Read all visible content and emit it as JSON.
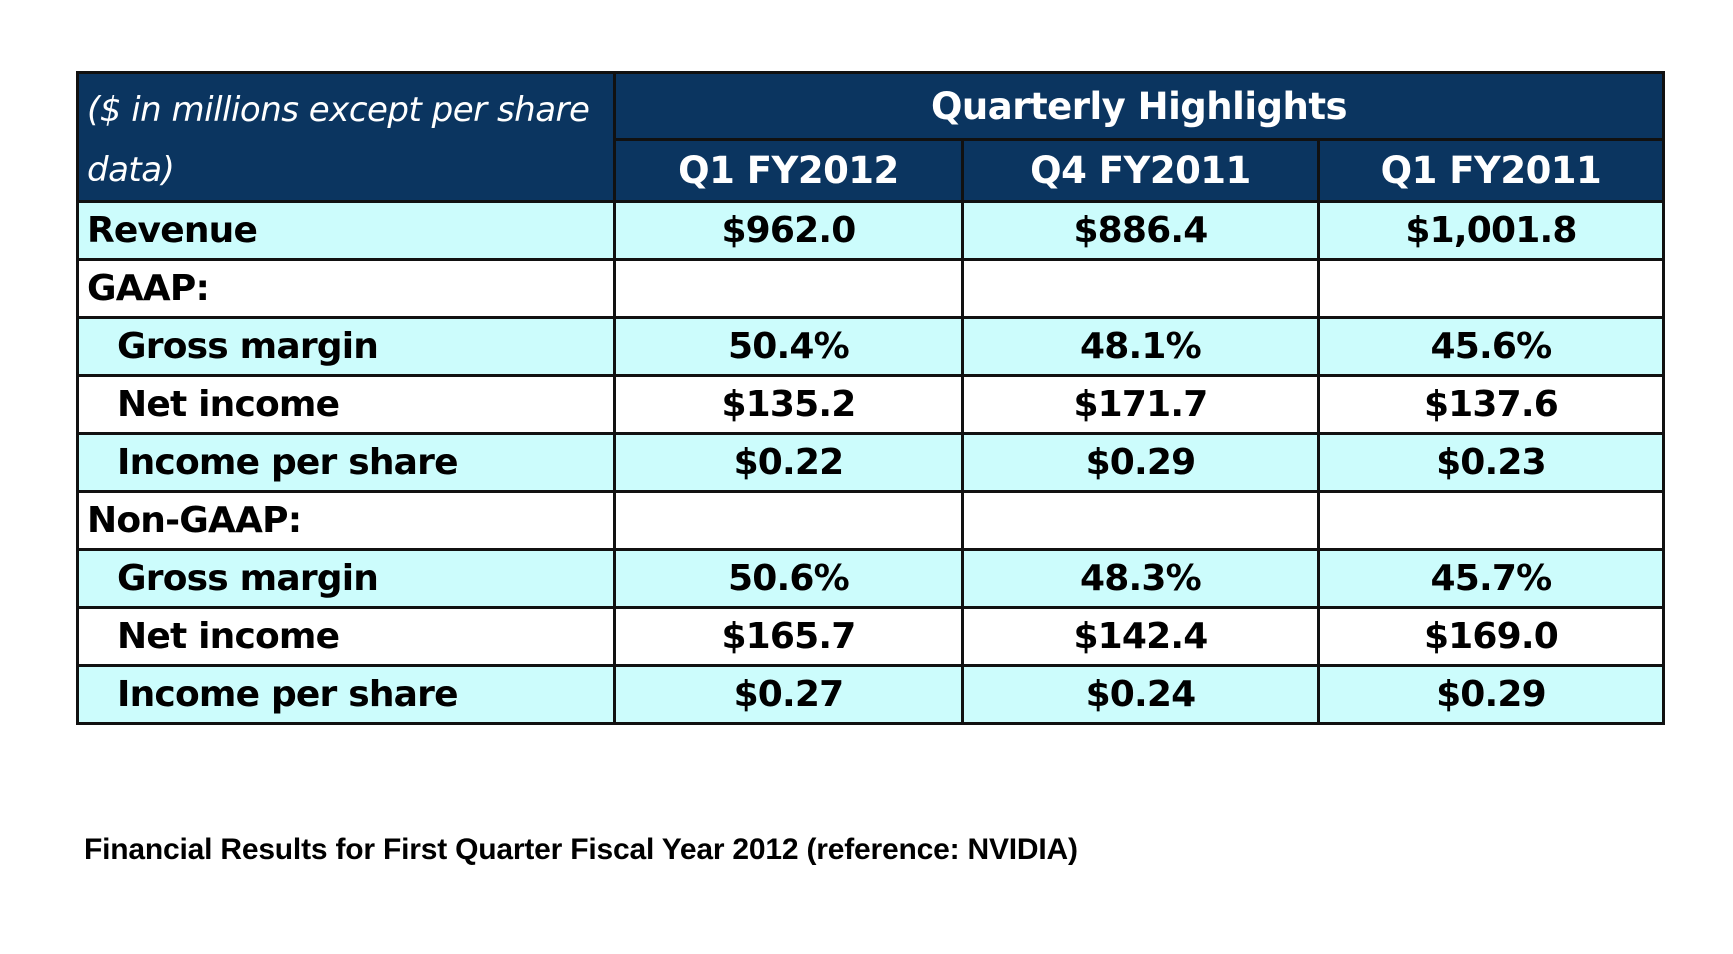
{
  "table": {
    "corner_label": "($ in millions except per share data)",
    "group_header": "Quarterly Highlights",
    "columns": [
      "Q1 FY2012",
      "Q4 FY2011",
      "Q1 FY2011"
    ],
    "rows": [
      {
        "label": "Revenue",
        "values": [
          "$962.0",
          "$886.4",
          "$1,001.8"
        ]
      },
      {
        "label": "GAAP:",
        "values": [
          "",
          "",
          ""
        ]
      },
      {
        "label": "Gross margin",
        "values": [
          "50.4%",
          "48.1%",
          "45.6%"
        ]
      },
      {
        "label": "Net income",
        "values": [
          "$135.2",
          "$171.7",
          "$137.6"
        ]
      },
      {
        "label": "Income per share",
        "values": [
          "$0.22",
          "$0.29",
          "$0.23"
        ]
      },
      {
        "label": "Non-GAAP:",
        "values": [
          "",
          "",
          ""
        ]
      },
      {
        "label": "Gross margin",
        "values": [
          "50.6%",
          "48.3%",
          "45.7%"
        ]
      },
      {
        "label": "Net income",
        "values": [
          "$165.7",
          "$142.4",
          "$169.0"
        ]
      },
      {
        "label": "Income per share",
        "values": [
          "$0.27",
          "$0.24",
          "$0.29"
        ]
      }
    ]
  },
  "caption": "Financial Results for First Quarter Fiscal Year 2012 (reference: NVIDIA)",
  "colors": {
    "header_bg": "#0b3560",
    "header_text": "#ffffff",
    "shaded_row": "#ccfcfc",
    "plain_row": "#ffffff",
    "border": "#111111"
  }
}
